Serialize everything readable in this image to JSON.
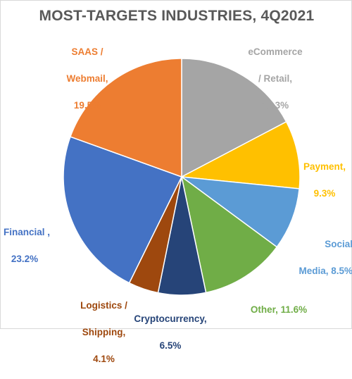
{
  "chart_data": {
    "type": "pie",
    "title": "MOST-TARGETS INDUSTRIES, 4Q2021",
    "slices": [
      {
        "line1": "eCommerce",
        "line2": "/ Retail,",
        "line3": "17.3%",
        "value": 17.3,
        "color": "#a5a5a5"
      },
      {
        "line1": "Payment,",
        "line2": "9.3%",
        "line3": "",
        "value": 9.3,
        "color": "#ffc000"
      },
      {
        "line1": "Social",
        "line2": "Media, 8.5%",
        "line3": "",
        "value": 8.5,
        "color": "#5b9bd5"
      },
      {
        "line1": "Other, 11.6%",
        "line2": "",
        "line3": "",
        "value": 11.6,
        "color": "#70ad47"
      },
      {
        "line1": "Cryptocurrency,",
        "line2": "6.5%",
        "line3": "",
        "value": 6.5,
        "color": "#264478"
      },
      {
        "line1": "Logistics /",
        "line2": "Shipping,",
        "line3": "4.1%",
        "value": 4.1,
        "color": "#9e480e"
      },
      {
        "line1": "Financial ,",
        "line2": "23.2%",
        "line3": "",
        "value": 23.2,
        "color": "#4472c4"
      },
      {
        "line1": "SAAS /",
        "line2": "Webmail,",
        "line3": "19.5%",
        "value": 19.5,
        "color": "#ed7d31"
      }
    ],
    "label_colors": [
      "#a5a5a5",
      "#ffc000",
      "#5b9bd5",
      "#70ad47",
      "#264478",
      "#9e480e",
      "#4472c4",
      "#ed7d31"
    ]
  }
}
